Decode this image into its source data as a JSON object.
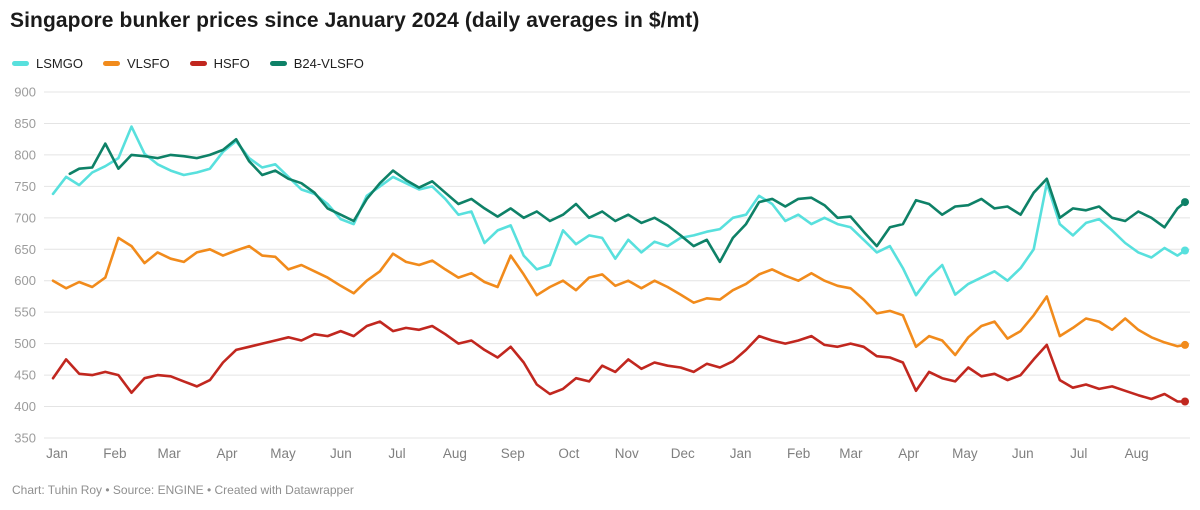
{
  "header": {
    "title": "Singapore bunker prices since January 2024 (daily averages in $/mt)"
  },
  "legend": {
    "position": "top-left",
    "items": [
      {
        "label": "LSMGO",
        "color": "#58e0dd"
      },
      {
        "label": "VLSFO",
        "color": "#f18b1c"
      },
      {
        "label": "HSFO",
        "color": "#c1271f"
      },
      {
        "label": "B24-VLSFO",
        "color": "#0e8167"
      }
    ]
  },
  "footer": {
    "credit": "Chart: Tuhin Roy • Source: ENGINE • Created with Datawrapper"
  },
  "chart_data": {
    "type": "line",
    "title": "Singapore bunker prices since January 2024 (daily averages in $/mt)",
    "unit": "$/mt",
    "grid": "horizontal",
    "legend_position": "top-left",
    "ylim": [
      350,
      900
    ],
    "yticks": [
      350,
      400,
      450,
      500,
      550,
      600,
      650,
      700,
      750,
      800,
      850,
      900
    ],
    "x_axis": {
      "unit": "day offset from 2024-01-01",
      "domain": [
        0,
        606
      ],
      "months": [
        {
          "label": "Jan",
          "day": 0
        },
        {
          "label": "Feb",
          "day": 31
        },
        {
          "label": "Mar",
          "day": 60
        },
        {
          "label": "Apr",
          "day": 91
        },
        {
          "label": "May",
          "day": 121
        },
        {
          "label": "Jun",
          "day": 152
        },
        {
          "label": "Jul",
          "day": 182
        },
        {
          "label": "Aug",
          "day": 213
        },
        {
          "label": "Sep",
          "day": 244
        },
        {
          "label": "Oct",
          "day": 274
        },
        {
          "label": "Nov",
          "day": 305
        },
        {
          "label": "Dec",
          "day": 335
        },
        {
          "label": "Jan",
          "day": 366
        },
        {
          "label": "Feb",
          "day": 397
        },
        {
          "label": "Mar",
          "day": 425
        },
        {
          "label": "Apr",
          "day": 456
        },
        {
          "label": "May",
          "day": 486
        },
        {
          "label": "Jun",
          "day": 517
        },
        {
          "label": "Jul",
          "day": 547
        },
        {
          "label": "Aug",
          "day": 578
        }
      ]
    },
    "series": [
      {
        "name": "LSMGO",
        "color": "#58e0dd",
        "x": [
          0,
          7,
          14,
          21,
          28,
          35,
          42,
          49,
          56,
          63,
          70,
          77,
          84,
          91,
          98,
          105,
          112,
          119,
          126,
          133,
          140,
          147,
          154,
          161,
          168,
          175,
          182,
          189,
          196,
          203,
          210,
          217,
          224,
          231,
          238,
          245,
          252,
          259,
          266,
          273,
          280,
          287,
          294,
          301,
          308,
          315,
          322,
          329,
          336,
          343,
          350,
          357,
          364,
          371,
          378,
          385,
          392,
          399,
          406,
          413,
          420,
          427,
          434,
          441,
          448,
          455,
          462,
          469,
          476,
          483,
          490,
          497,
          504,
          511,
          518,
          525,
          532,
          539,
          546,
          553,
          560,
          567,
          574,
          581,
          588,
          595,
          602,
          606
        ],
        "values": [
          738,
          765,
          752,
          772,
          782,
          795,
          845,
          802,
          785,
          775,
          768,
          772,
          778,
          805,
          822,
          795,
          780,
          785,
          765,
          745,
          738,
          722,
          698,
          690,
          735,
          750,
          765,
          755,
          745,
          750,
          730,
          705,
          710,
          660,
          680,
          688,
          640,
          618,
          625,
          680,
          658,
          672,
          668,
          635,
          665,
          645,
          662,
          655,
          668,
          672,
          678,
          682,
          700,
          705,
          735,
          722,
          695,
          705,
          690,
          700,
          690,
          685,
          665,
          645,
          655,
          620,
          577,
          605,
          625,
          578,
          595,
          605,
          615,
          600,
          620,
          650,
          755,
          690,
          672,
          692,
          698,
          680,
          660,
          645,
          637,
          652,
          640,
          648
        ]
      },
      {
        "name": "VLSFO",
        "color": "#f18b1c",
        "x": [
          0,
          7,
          14,
          21,
          28,
          35,
          42,
          49,
          56,
          63,
          70,
          77,
          84,
          91,
          98,
          105,
          112,
          119,
          126,
          133,
          140,
          147,
          154,
          161,
          168,
          175,
          182,
          189,
          196,
          203,
          210,
          217,
          224,
          231,
          238,
          245,
          252,
          259,
          266,
          273,
          280,
          287,
          294,
          301,
          308,
          315,
          322,
          329,
          336,
          343,
          350,
          357,
          364,
          371,
          378,
          385,
          392,
          399,
          406,
          413,
          420,
          427,
          434,
          441,
          448,
          455,
          462,
          469,
          476,
          483,
          490,
          497,
          504,
          511,
          518,
          525,
          532,
          539,
          546,
          553,
          560,
          567,
          574,
          581,
          588,
          595,
          602,
          606
        ],
        "values": [
          600,
          588,
          598,
          590,
          605,
          668,
          655,
          628,
          645,
          635,
          630,
          645,
          650,
          640,
          648,
          655,
          640,
          638,
          618,
          625,
          615,
          605,
          592,
          580,
          600,
          615,
          643,
          630,
          625,
          632,
          618,
          605,
          612,
          598,
          590,
          640,
          610,
          577,
          590,
          600,
          585,
          605,
          610,
          592,
          600,
          588,
          600,
          590,
          578,
          565,
          572,
          570,
          585,
          595,
          610,
          618,
          608,
          600,
          612,
          600,
          592,
          588,
          570,
          548,
          552,
          545,
          495,
          512,
          505,
          482,
          510,
          528,
          535,
          508,
          520,
          545,
          575,
          512,
          525,
          540,
          535,
          522,
          540,
          522,
          510,
          502,
          496,
          498
        ]
      },
      {
        "name": "HSFO",
        "color": "#c1271f",
        "x": [
          0,
          7,
          14,
          21,
          28,
          35,
          42,
          49,
          56,
          63,
          70,
          77,
          84,
          91,
          98,
          105,
          112,
          119,
          126,
          133,
          140,
          147,
          154,
          161,
          168,
          175,
          182,
          189,
          196,
          203,
          210,
          217,
          224,
          231,
          238,
          245,
          252,
          259,
          266,
          273,
          280,
          287,
          294,
          301,
          308,
          315,
          322,
          329,
          336,
          343,
          350,
          357,
          364,
          371,
          378,
          385,
          392,
          399,
          406,
          413,
          420,
          427,
          434,
          441,
          448,
          455,
          462,
          469,
          476,
          483,
          490,
          497,
          504,
          511,
          518,
          525,
          532,
          539,
          546,
          553,
          560,
          567,
          574,
          581,
          588,
          595,
          602,
          606
        ],
        "values": [
          445,
          475,
          452,
          450,
          455,
          450,
          422,
          445,
          450,
          448,
          440,
          432,
          442,
          470,
          490,
          495,
          500,
          505,
          510,
          505,
          515,
          512,
          520,
          512,
          528,
          535,
          520,
          525,
          522,
          528,
          515,
          500,
          505,
          490,
          478,
          495,
          470,
          435,
          420,
          428,
          445,
          440,
          465,
          455,
          475,
          460,
          470,
          465,
          462,
          455,
          468,
          462,
          472,
          490,
          512,
          505,
          500,
          505,
          512,
          498,
          495,
          500,
          495,
          480,
          478,
          470,
          425,
          455,
          445,
          440,
          462,
          448,
          452,
          442,
          450,
          475,
          498,
          442,
          430,
          435,
          428,
          432,
          425,
          418,
          412,
          420,
          408,
          408
        ]
      },
      {
        "name": "B24-VLSFO",
        "color": "#0e8167",
        "x": [
          9,
          14,
          21,
          28,
          35,
          42,
          49,
          56,
          63,
          70,
          77,
          84,
          91,
          98,
          105,
          112,
          119,
          126,
          133,
          140,
          147,
          154,
          161,
          168,
          175,
          182,
          189,
          196,
          203,
          210,
          217,
          224,
          231,
          238,
          245,
          252,
          259,
          266,
          273,
          280,
          287,
          294,
          301,
          308,
          315,
          322,
          329,
          336,
          343,
          350,
          357,
          364,
          371,
          378,
          385,
          392,
          399,
          406,
          413,
          420,
          427,
          434,
          441,
          448,
          455,
          462,
          469,
          476,
          483,
          490,
          497,
          504,
          511,
          518,
          525,
          532,
          539,
          546,
          553,
          560,
          567,
          574,
          581,
          588,
          595,
          602,
          606
        ],
        "values": [
          770,
          778,
          780,
          818,
          778,
          800,
          798,
          795,
          800,
          798,
          795,
          800,
          808,
          825,
          790,
          768,
          775,
          762,
          755,
          740,
          715,
          705,
          695,
          730,
          755,
          775,
          760,
          748,
          758,
          740,
          722,
          730,
          715,
          702,
          715,
          700,
          710,
          695,
          705,
          722,
          700,
          710,
          695,
          705,
          692,
          700,
          688,
          672,
          655,
          665,
          630,
          668,
          690,
          725,
          730,
          718,
          730,
          732,
          720,
          700,
          702,
          678,
          655,
          685,
          690,
          728,
          722,
          705,
          718,
          720,
          730,
          715,
          718,
          705,
          740,
          762,
          700,
          715,
          712,
          718,
          700,
          695,
          710,
          700,
          685,
          715,
          725
        ]
      }
    ]
  }
}
